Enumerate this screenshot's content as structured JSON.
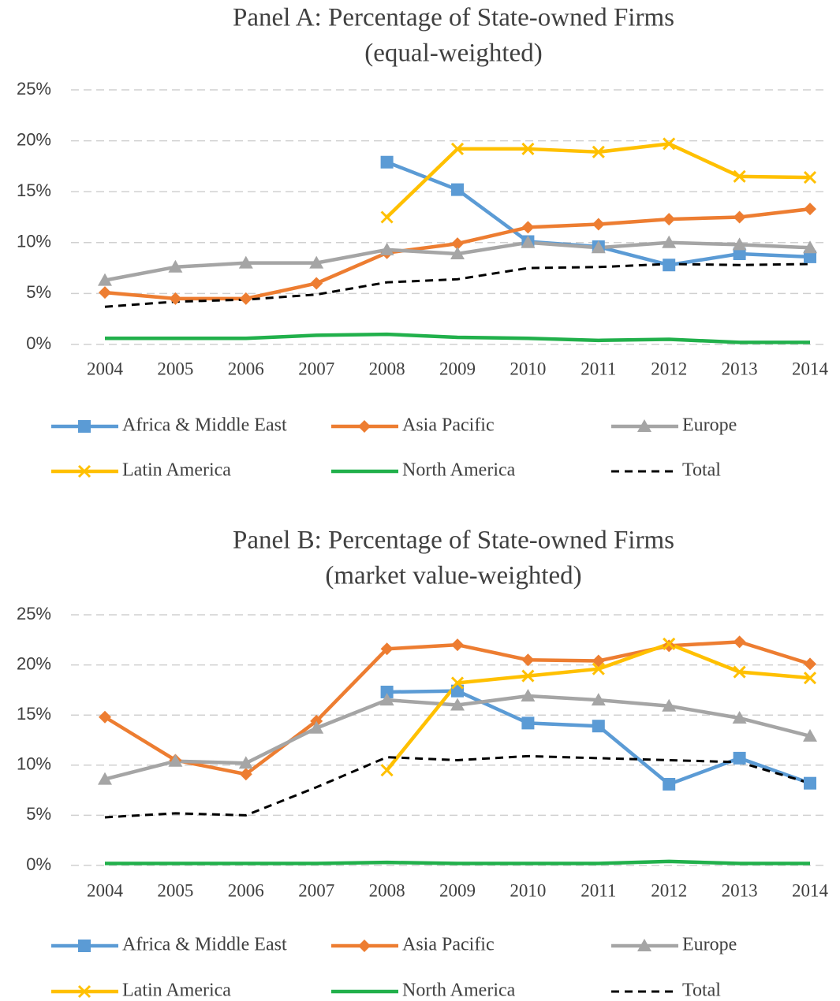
{
  "chart_data": [
    {
      "type": "line",
      "title": "Panel A: Percentage of State-owned Firms",
      "subtitle": "(equal-weighted)",
      "categories": [
        "2004",
        "2005",
        "2006",
        "2007",
        "2008",
        "2009",
        "2010",
        "2011",
        "2012",
        "2013",
        "2014"
      ],
      "ylim": [
        0,
        25
      ],
      "yticks": [
        {
          "value": 0,
          "label": "0%"
        },
        {
          "value": 5,
          "label": "5%"
        },
        {
          "value": 10,
          "label": "10%"
        },
        {
          "value": 15,
          "label": "15%"
        },
        {
          "value": 20,
          "label": "20%"
        },
        {
          "value": 25,
          "label": "25%"
        }
      ],
      "grid": true,
      "series": [
        {
          "name": "Africa & Middle East",
          "color": "#5b9bd5",
          "marker": "square",
          "values": [
            null,
            null,
            null,
            null,
            17.9,
            15.2,
            10.1,
            9.6,
            7.8,
            8.9,
            8.6
          ]
        },
        {
          "name": "Asia Pacific",
          "color": "#ed7d31",
          "marker": "diamond",
          "values": [
            5.1,
            4.5,
            4.5,
            6.0,
            9.0,
            9.9,
            11.5,
            11.8,
            12.3,
            12.5,
            13.3
          ]
        },
        {
          "name": "Europe",
          "color": "#a5a5a5",
          "marker": "triangle",
          "values": [
            6.3,
            7.6,
            8.0,
            8.0,
            9.3,
            8.9,
            10.0,
            9.5,
            10.0,
            9.8,
            9.5
          ]
        },
        {
          "name": "Latin America",
          "color": "#ffc000",
          "marker": "x",
          "values": [
            null,
            null,
            null,
            null,
            12.5,
            19.2,
            19.2,
            18.9,
            19.7,
            16.5,
            16.4
          ]
        },
        {
          "name": "North America",
          "color": "#21b04b",
          "marker": "none",
          "values": [
            0.6,
            0.6,
            0.6,
            0.9,
            1.0,
            0.7,
            0.6,
            0.4,
            0.5,
            0.2,
            0.2
          ]
        },
        {
          "name": "Total",
          "color": "#000000",
          "marker": "none",
          "dash": true,
          "values": [
            3.7,
            4.2,
            4.4,
            4.9,
            6.1,
            6.4,
            7.5,
            7.6,
            7.9,
            7.8,
            7.9
          ]
        }
      ]
    },
    {
      "type": "line",
      "title": "Panel B: Percentage of State-owned Firms",
      "subtitle": "(market value-weighted)",
      "categories": [
        "2004",
        "2005",
        "2006",
        "2007",
        "2008",
        "2009",
        "2010",
        "2011",
        "2012",
        "2013",
        "2014"
      ],
      "ylim": [
        0,
        25
      ],
      "yticks": [
        {
          "value": 0,
          "label": "0%"
        },
        {
          "value": 5,
          "label": "5%"
        },
        {
          "value": 10,
          "label": "10%"
        },
        {
          "value": 15,
          "label": "15%"
        },
        {
          "value": 20,
          "label": "20%"
        },
        {
          "value": 25,
          "label": "25%"
        }
      ],
      "grid": true,
      "series": [
        {
          "name": "Africa & Middle East",
          "color": "#5b9bd5",
          "marker": "square",
          "values": [
            null,
            null,
            null,
            null,
            17.3,
            17.4,
            14.2,
            13.9,
            8.1,
            10.7,
            8.2
          ]
        },
        {
          "name": "Asia Pacific",
          "color": "#ed7d31",
          "marker": "diamond",
          "values": [
            14.8,
            10.5,
            9.1,
            14.4,
            21.6,
            22.0,
            20.5,
            20.4,
            21.9,
            22.3,
            20.1
          ]
        },
        {
          "name": "Europe",
          "color": "#a5a5a5",
          "marker": "triangle",
          "values": [
            8.6,
            10.4,
            10.2,
            13.7,
            16.5,
            16.0,
            16.9,
            16.5,
            15.9,
            14.7,
            12.9
          ]
        },
        {
          "name": "Latin America",
          "color": "#ffc000",
          "marker": "x",
          "values": [
            null,
            null,
            null,
            null,
            9.5,
            18.2,
            18.9,
            19.6,
            22.1,
            19.3,
            18.7
          ]
        },
        {
          "name": "North America",
          "color": "#21b04b",
          "marker": "none",
          "values": [
            0.2,
            0.2,
            0.2,
            0.2,
            0.3,
            0.2,
            0.2,
            0.2,
            0.4,
            0.2,
            0.2
          ]
        },
        {
          "name": "Total",
          "color": "#000000",
          "marker": "none",
          "dash": true,
          "values": [
            4.8,
            5.2,
            5.0,
            7.8,
            10.8,
            10.5,
            10.9,
            10.7,
            10.5,
            10.3,
            8.2
          ]
        }
      ]
    }
  ]
}
